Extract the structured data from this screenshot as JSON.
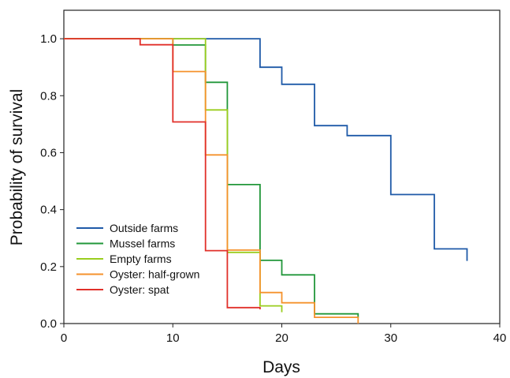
{
  "chart_data": {
    "type": "line",
    "subtype": "step",
    "xlabel": "Days",
    "ylabel": "Probability of survival",
    "xlim": [
      0,
      40
    ],
    "ylim": [
      0,
      1.1
    ],
    "xticks": [
      0,
      10,
      20,
      30,
      40
    ],
    "yticks": [
      0.0,
      0.2,
      0.4,
      0.6,
      0.8,
      1.0
    ],
    "xtick_labels": [
      "0",
      "10",
      "20",
      "30",
      "40"
    ],
    "ytick_labels": [
      "0.0",
      "0.2",
      "0.4",
      "0.6",
      "0.8",
      "1.0"
    ],
    "grid": false,
    "legend_position": "lower-left",
    "series": [
      {
        "name": "Outside farms",
        "color": "#1f5aa8",
        "x": [
          0,
          18,
          20,
          23,
          26,
          30,
          34,
          37
        ],
        "y": [
          1.0,
          0.9,
          0.84,
          0.695,
          0.66,
          0.453,
          0.262,
          0.22
        ]
      },
      {
        "name": "Mussel farms",
        "color": "#22973a",
        "x": [
          0,
          10,
          13,
          15,
          18,
          20,
          23,
          27
        ],
        "y": [
          1.0,
          0.978,
          0.847,
          0.488,
          0.222,
          0.171,
          0.034,
          0.02
        ]
      },
      {
        "name": "Empty farms",
        "color": "#9acd1e",
        "x": [
          0,
          13,
          15,
          18,
          20
        ],
        "y": [
          1.0,
          0.75,
          0.25,
          0.062,
          0.04
        ]
      },
      {
        "name": "Oyster: half-grown",
        "color": "#f5922c",
        "x": [
          0,
          10,
          13,
          15,
          18,
          20,
          23,
          27
        ],
        "y": [
          1.0,
          0.885,
          0.592,
          0.258,
          0.109,
          0.073,
          0.022,
          0.0
        ]
      },
      {
        "name": "Oyster: spat",
        "color": "#e1302a",
        "x": [
          0,
          7,
          10,
          13,
          15,
          18
        ],
        "y": [
          1.0,
          0.979,
          0.708,
          0.256,
          0.056,
          0.05
        ]
      }
    ]
  }
}
